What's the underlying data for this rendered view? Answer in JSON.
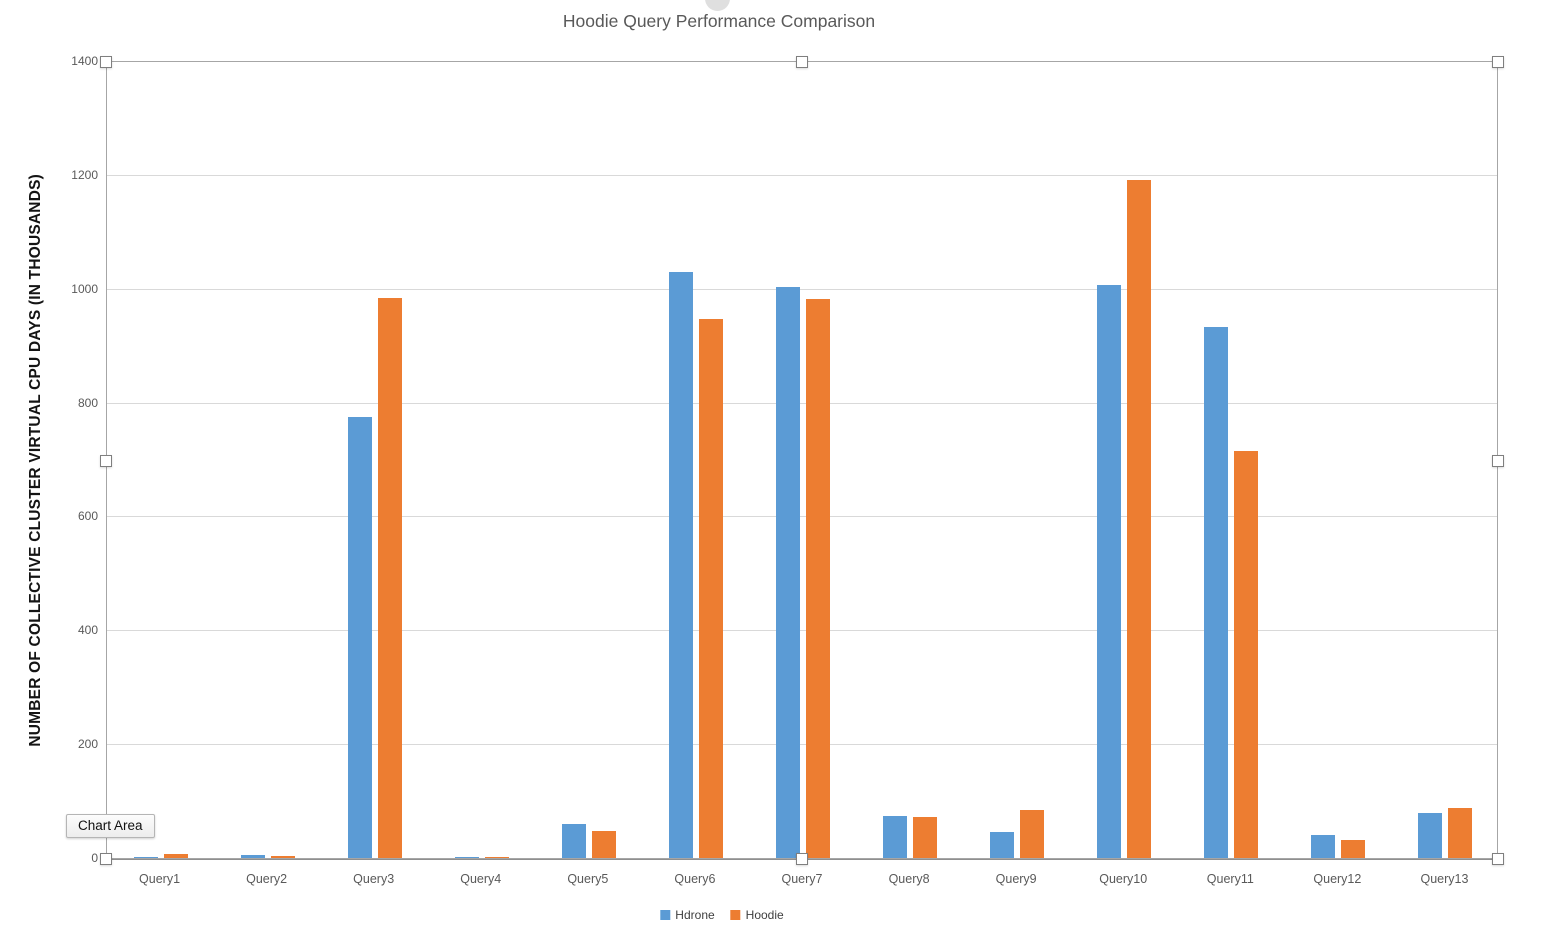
{
  "chart_data": {
    "type": "bar",
    "title": "Hoodie Query Performance Comparison",
    "ylabel": "NUMBER OF COLLECTIVE CLUSTER VIRTUAL CPU DAYS (IN THOUSANDS)",
    "xlabel": "",
    "categories": [
      "Query1",
      "Query2",
      "Query3",
      "Query4",
      "Query5",
      "Query6",
      "Query7",
      "Query8",
      "Query9",
      "Query10",
      "Query11",
      "Query12",
      "Query13"
    ],
    "series": [
      {
        "name": "Hdrone",
        "color": "#5B9BD5",
        "values": [
          4,
          7,
          776,
          3,
          62,
          1031,
          1004,
          75,
          47,
          1008,
          935,
          43,
          80
        ]
      },
      {
        "name": "Hoodie",
        "color": "#ED7D31",
        "values": [
          8,
          6,
          985,
          3,
          50,
          949,
          984,
          73,
          86,
          1192,
          717,
          33,
          89
        ]
      }
    ],
    "ylim": [
      0,
      1400
    ],
    "yticks": [
      0,
      200,
      400,
      600,
      800,
      1000,
      1200,
      1400
    ],
    "grid": true,
    "legend_position": "bottom"
  },
  "ui": {
    "tooltip_label": "Chart Area"
  },
  "colors": {
    "series1": "#5B9BD5",
    "series2": "#ED7D31",
    "gridline": "#D9D9D9",
    "axis_line": "#8F8F8F",
    "title_text": "#595959",
    "tick_text": "#595959"
  }
}
